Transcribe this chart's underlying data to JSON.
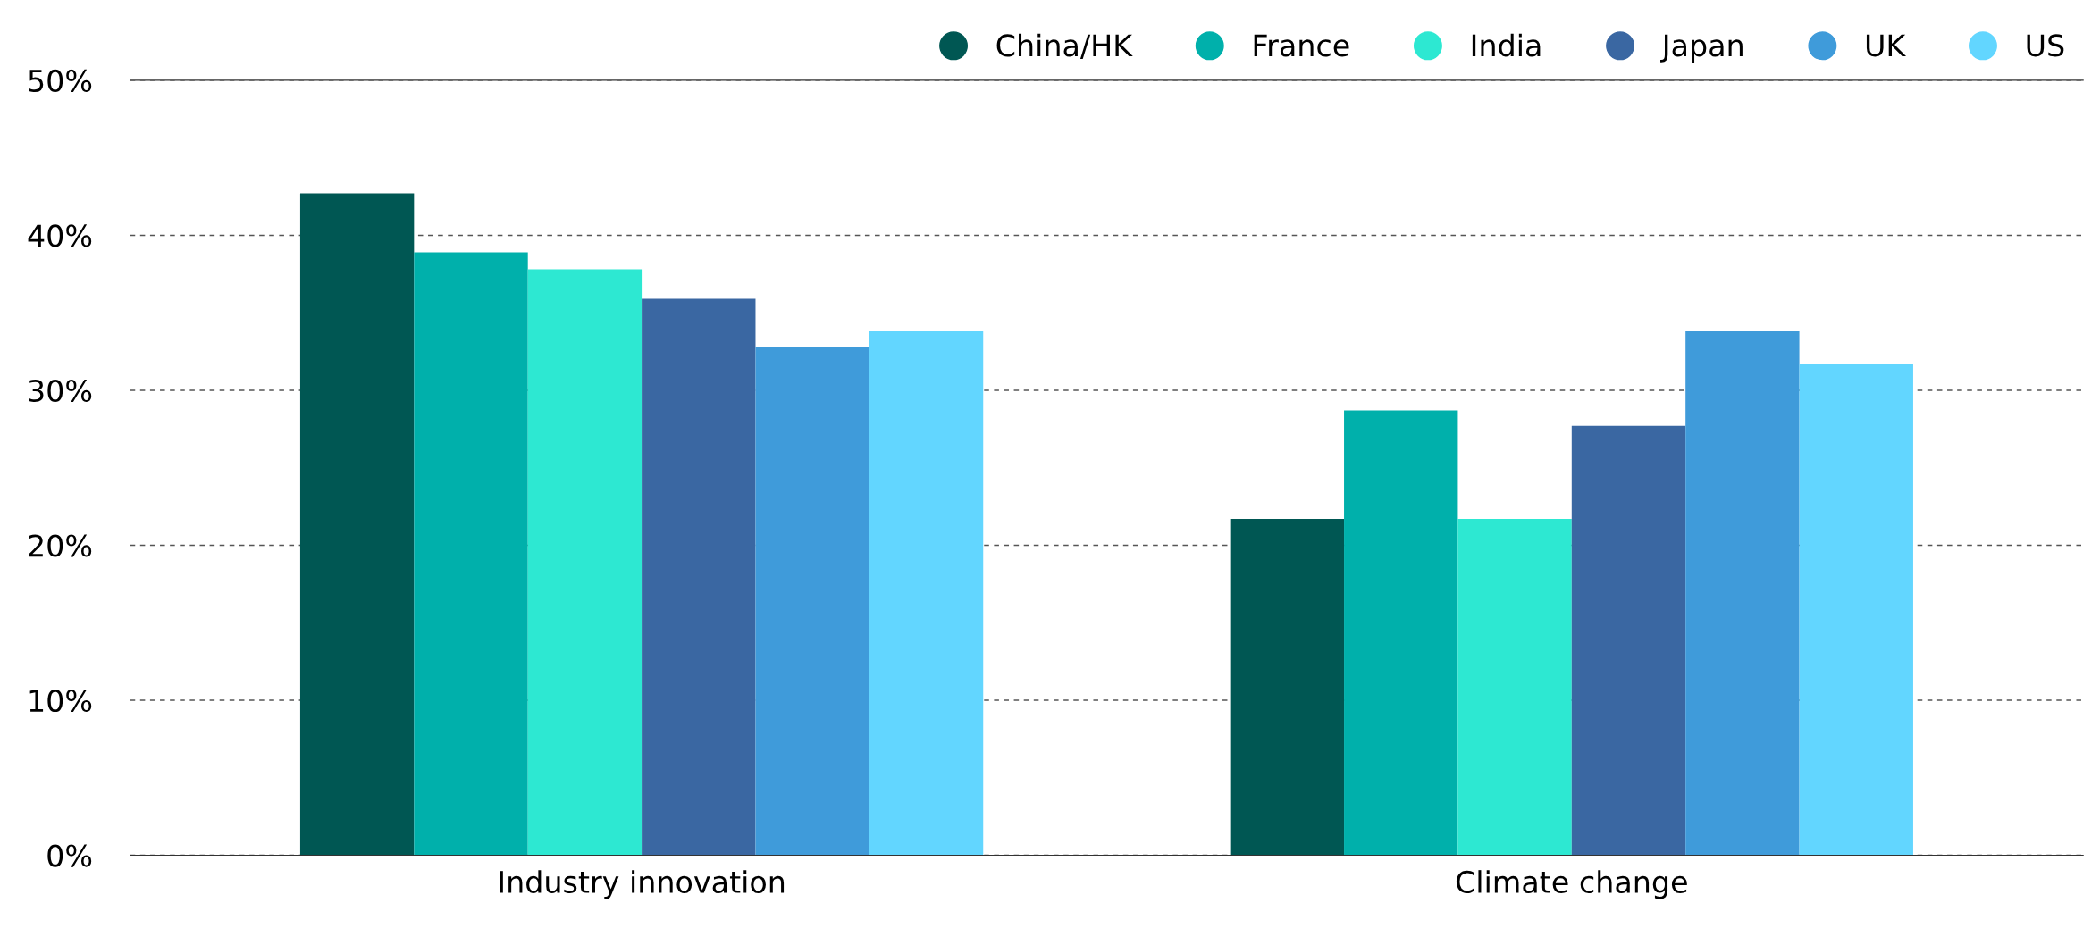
{
  "chart_data": {
    "type": "bar",
    "categories": [
      "Industry innovation",
      "Climate change"
    ],
    "series": [
      {
        "name": "China/HK",
        "color": "#005753",
        "values": [
          42.7,
          21.7
        ]
      },
      {
        "name": "France",
        "color": "#00b0ab",
        "values": [
          38.9,
          28.7
        ]
      },
      {
        "name": "India",
        "color": "#2de8d2",
        "values": [
          37.8,
          21.7
        ]
      },
      {
        "name": "Japan",
        "color": "#3a67a2",
        "values": [
          35.9,
          27.7
        ]
      },
      {
        "name": "UK",
        "color": "#3f9bda",
        "values": [
          32.8,
          33.8
        ]
      },
      {
        "name": "US",
        "color": "#62d6ff",
        "values": [
          33.8,
          31.7
        ]
      }
    ],
    "ylim": [
      0,
      50
    ],
    "yticks": [
      {
        "value": 0,
        "label": "0%"
      },
      {
        "value": 10,
        "label": "10%"
      },
      {
        "value": 20,
        "label": "20%"
      },
      {
        "value": 30,
        "label": "30%"
      },
      {
        "value": 40,
        "label": "40%"
      },
      {
        "value": 50,
        "label": "50%"
      }
    ],
    "grid": "y",
    "legend": "top right",
    "marker": "circle"
  }
}
